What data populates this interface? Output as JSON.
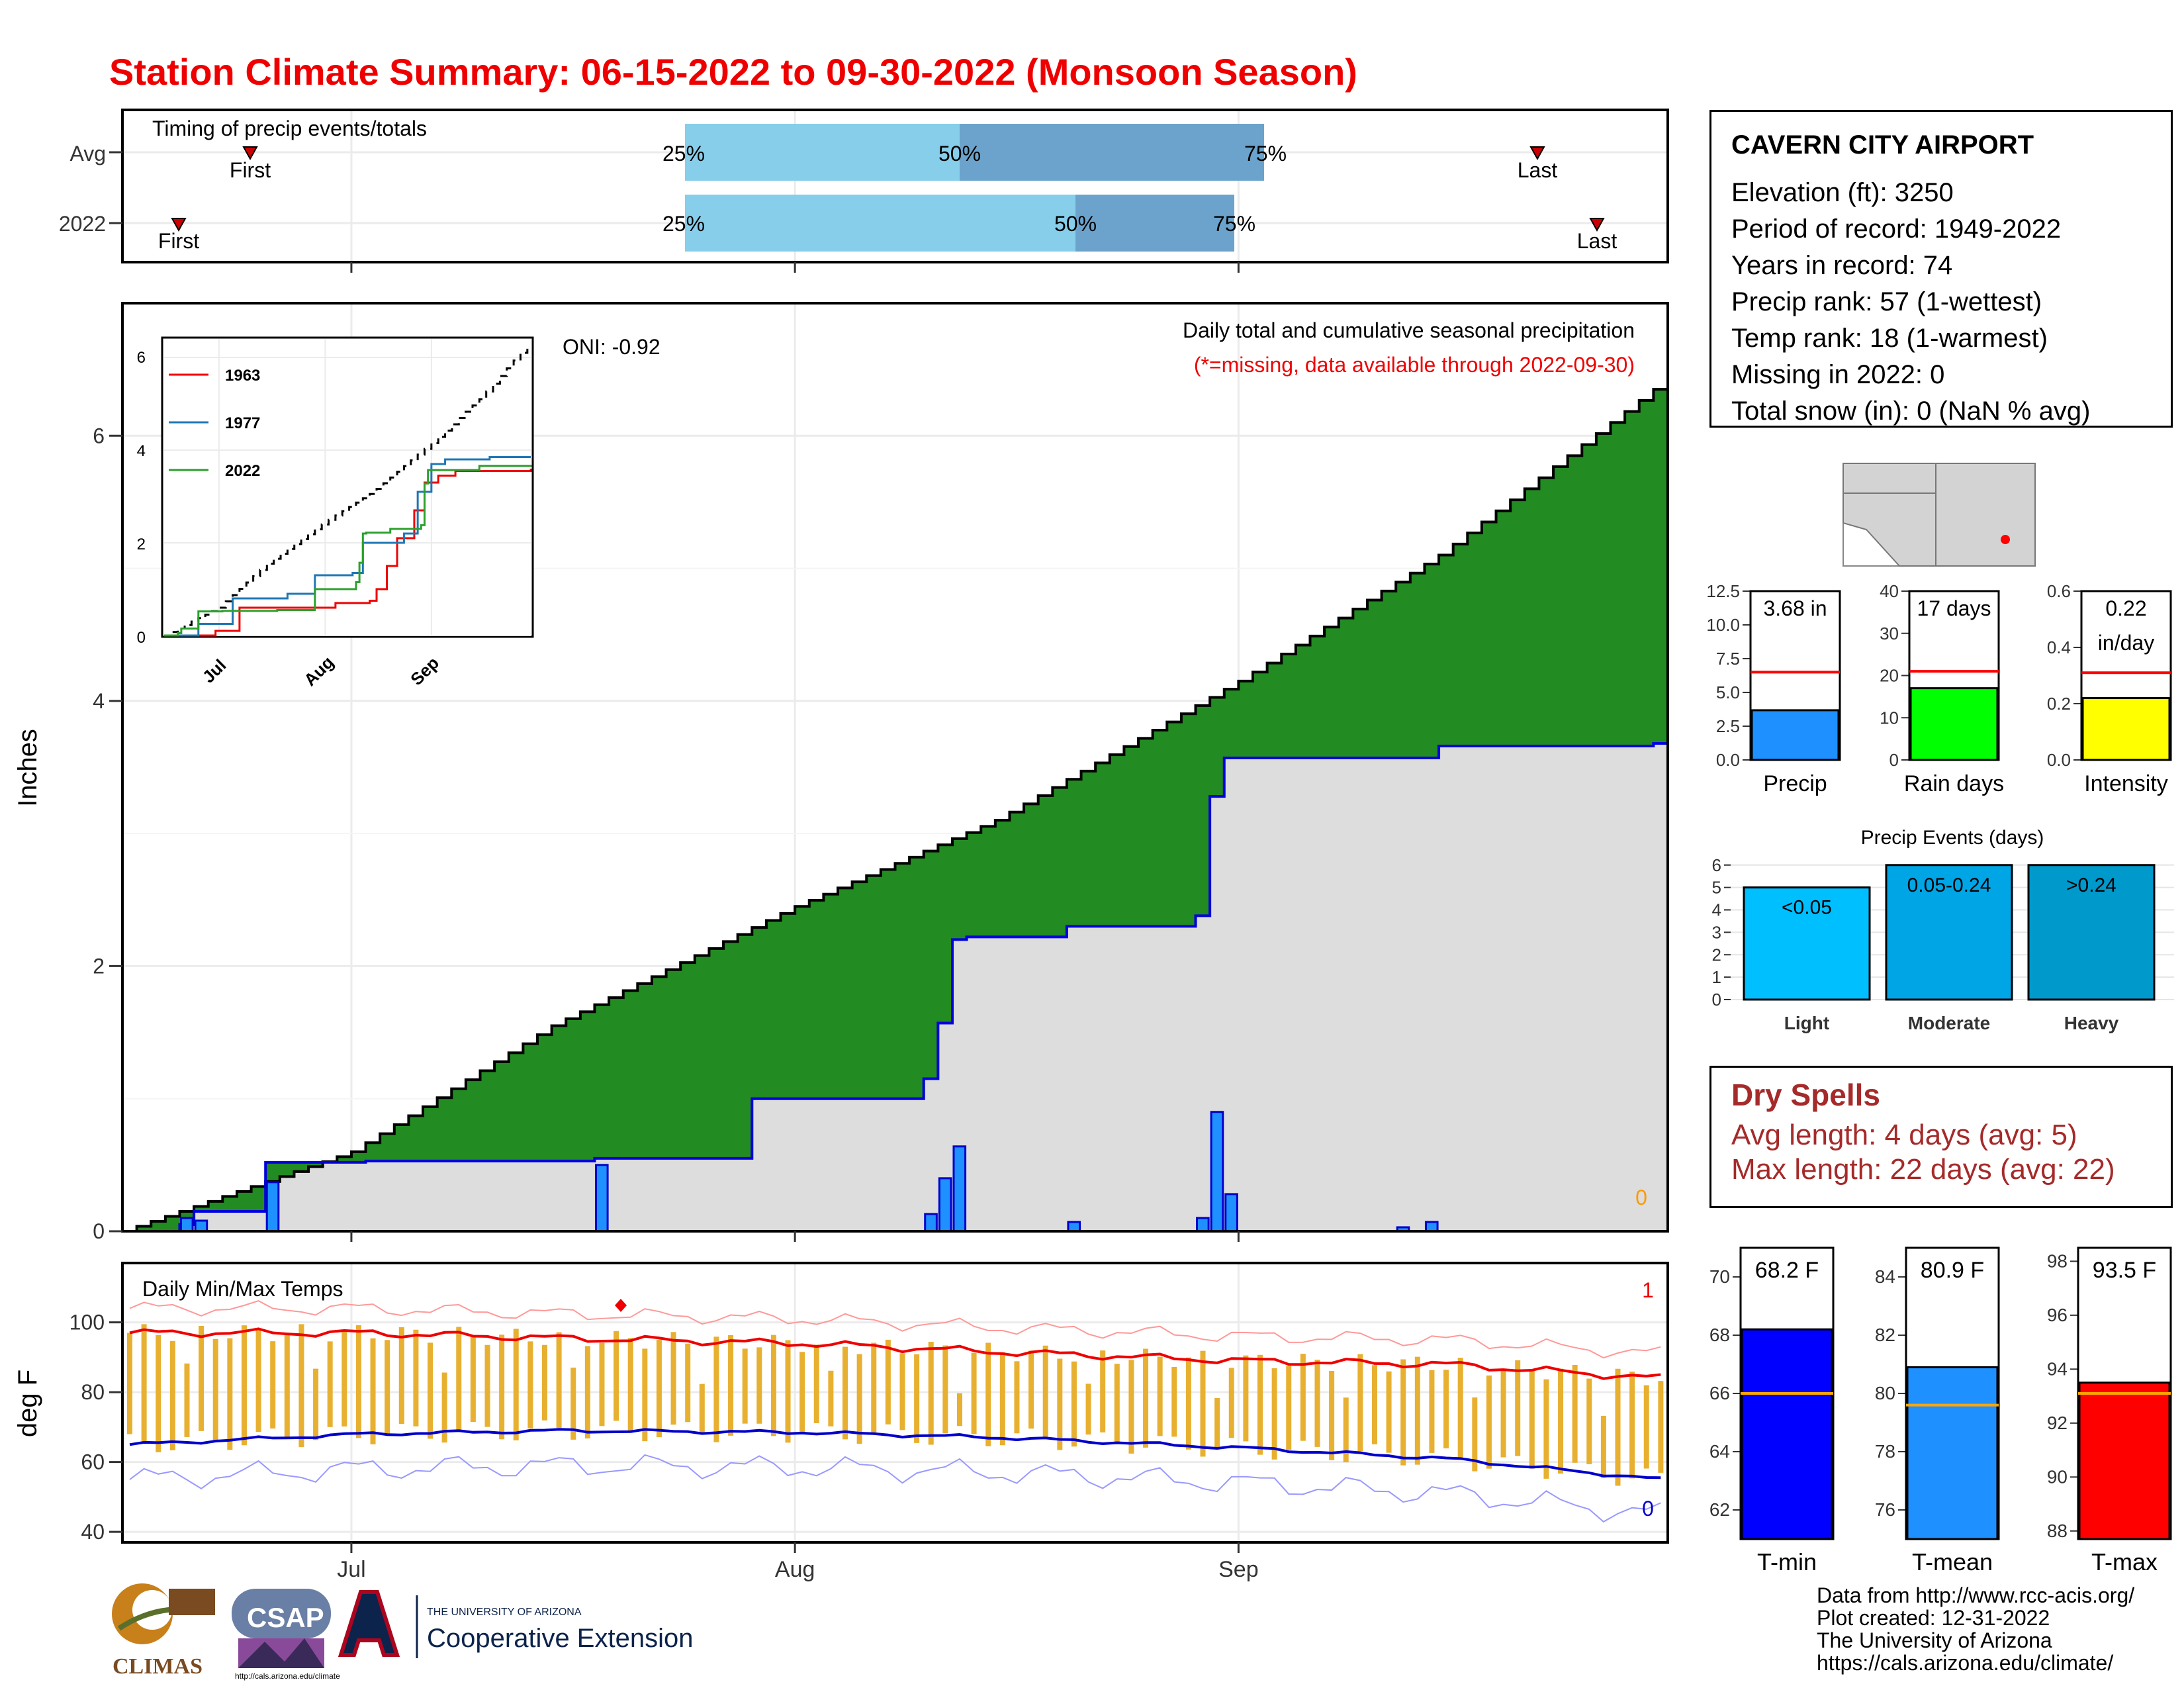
{
  "page_title": "Station Climate Summary: 06-15-2022 to 09-30-2022 (Monsoon Season)",
  "colors": {
    "title": "#ee0000",
    "cumulative_avg_fill": "#8b5a00",
    "cumulative_2022_fill": "#dddddd",
    "cumulative_2022_line": "#0000dd",
    "daily_bar": "#1e90ff",
    "timing_light": "#87ceeb",
    "timing_dark": "#6ba3cc",
    "tmax_avg": "#ee0000",
    "tmin_avg": "#0000cc",
    "temp_range_bar": "#e8b030",
    "precip_bar": "#1e90ff",
    "raindays_bar": "#00ff00",
    "intensity_bar": "#ffff00",
    "light_bar": "#00bfff",
    "moderate_bar": "#00a5e6",
    "heavy_bar": "#0099cc",
    "tmin_bar": "#0000ff",
    "tmean_bar": "#1e90ff",
    "tmax_bar": "#ff0000",
    "dry_spells": "#a52a2a"
  },
  "timing_panel": {
    "label": "Timing of precip events/totals",
    "rows": [
      {
        "name": "Avg",
        "first_label": "First",
        "last_label": "Last",
        "p25": "25%",
        "p50": "50%",
        "p75": "75%"
      },
      {
        "name": "2022",
        "first_label": "First",
        "last_label": "Last",
        "p25": "25%",
        "p50": "50%",
        "p75": "75%"
      }
    ]
  },
  "x_axis_months": [
    "Jul",
    "Aug",
    "Sep"
  ],
  "precip_panel": {
    "ylabel": "Inches",
    "yticks": [
      "0",
      "2",
      "4",
      "6"
    ],
    "oni": "ONI: -0.92",
    "caption": "Daily total and cumulative seasonal precipitation",
    "missing_note": "(*=missing, data available through 2022-09-30)",
    "missing_count": "0",
    "inset": {
      "yticks": [
        "0",
        "2",
        "4",
        "6"
      ],
      "xticks": [
        "Jul",
        "Aug",
        "Sep"
      ],
      "legend": [
        {
          "name": "1963",
          "color": "#ee0000"
        },
        {
          "name": "1977",
          "color": "#1f77b4"
        },
        {
          "name": "2022",
          "color": "#2ca02c"
        }
      ]
    }
  },
  "temp_panel": {
    "label": "Daily Min/Max Temps",
    "ylabel": "deg F",
    "yticks": [
      "40",
      "60",
      "80",
      "100"
    ],
    "high_count": "1",
    "low_count": "0"
  },
  "station": {
    "name": "CAVERN CITY AIRPORT",
    "lines": [
      "Elevation (ft): 3250",
      "Period of record: 1949-2022",
      "Years in record: 74",
      "Precip rank: 57 (1-wettest)",
      "Temp rank: 18 (1-warmest)",
      "Missing in 2022: 0",
      "Total snow (in): 0 (NaN % avg)"
    ]
  },
  "mini_bars": {
    "precip": {
      "value_label": "3.68 in",
      "value": 3.68,
      "avg": 6.5,
      "yticks": [
        "0.0",
        "2.5",
        "5.0",
        "7.5",
        "10.0",
        "12.5"
      ],
      "xlabel": "Precip"
    },
    "raindays": {
      "value_label": "17 days",
      "value": 17,
      "avg": 21,
      "yticks": [
        "0",
        "10",
        "20",
        "30",
        "40"
      ],
      "xlabel": "Rain days"
    },
    "intensity": {
      "value_label_1": "0.22",
      "value_label_2": "in/day",
      "value": 0.22,
      "avg": 0.31,
      "yticks": [
        "0.0",
        "0.2",
        "0.4",
        "0.6"
      ],
      "xlabel": "Intensity"
    }
  },
  "events_panel": {
    "title": "Precip Events (days)",
    "yticks": [
      "0",
      "1",
      "2",
      "3",
      "4",
      "5",
      "6"
    ],
    "bars": [
      {
        "category": "Light",
        "label": "<0.05",
        "value": 5
      },
      {
        "category": "Moderate",
        "label": "0.05-0.24",
        "value": 6
      },
      {
        "category": "Heavy",
        "label": ">0.24",
        "value": 6
      }
    ]
  },
  "dry_spells": {
    "title": "Dry Spells",
    "avg_line": "Avg length: 4 days (avg: 5)",
    "max_line": "Max length: 22 days (avg: 22)"
  },
  "temp_bars": {
    "tmin": {
      "value_label": "68.2 F",
      "value": 68.2,
      "avg": 66.0,
      "yticks": [
        "62",
        "64",
        "66",
        "68",
        "70"
      ],
      "xlabel": "T-min"
    },
    "tmean": {
      "value_label": "80.9 F",
      "value": 80.9,
      "avg": 79.6,
      "yticks": [
        "76",
        "78",
        "80",
        "82",
        "84"
      ],
      "xlabel": "T-mean"
    },
    "tmax": {
      "value_label": "93.5 F",
      "value": 93.5,
      "avg": 93.1,
      "yticks": [
        "88",
        "90",
        "92",
        "94",
        "96",
        "98"
      ],
      "xlabel": "T-max"
    }
  },
  "credits": [
    "Data from http://www.rcc-acis.org/",
    "Plot created: 12-31-2022",
    "The University of Arizona",
    "https://cals.arizona.edu/climate/"
  ],
  "logos": {
    "climas": "CLIMAS",
    "csap": "CSAP",
    "csap_url": "http://cals.arizona.edu/climate",
    "ua_small": "THE UNIVERSITY OF ARIZONA",
    "ua_large": "Cooperative Extension"
  },
  "chart_data": [
    {
      "type": "area",
      "title": "Daily total and cumulative seasonal precipitation",
      "ylabel": "Inches",
      "ylim": [
        0,
        7
      ],
      "x_range": [
        "2022-06-15",
        "2022-09-30"
      ],
      "series": [
        {
          "name": "Average cumulative",
          "x": [
            "2022-06-15",
            "2022-07-01",
            "2022-07-15",
            "2022-08-01",
            "2022-08-15",
            "2022-09-01",
            "2022-09-15",
            "2022-09-30"
          ],
          "values": [
            0,
            0.6,
            1.55,
            2.45,
            3.1,
            4.15,
            5.1,
            6.35
          ]
        },
        {
          "name": "2022 cumulative",
          "x": [
            "2022-06-15",
            "2022-06-19",
            "2022-06-20",
            "2022-06-25",
            "2022-07-02",
            "2022-07-18",
            "2022-07-29",
            "2022-08-10",
            "2022-08-11",
            "2022-08-12",
            "2022-08-13",
            "2022-08-20",
            "2022-08-29",
            "2022-08-30",
            "2022-08-31",
            "2022-09-01",
            "2022-09-15",
            "2022-09-30"
          ],
          "values": [
            0,
            0.05,
            0.15,
            0.52,
            0.53,
            0.55,
            1.0,
            1.15,
            1.57,
            2.2,
            2.22,
            2.3,
            2.38,
            3.28,
            3.57,
            3.57,
            3.66,
            3.68
          ]
        },
        {
          "name": "2022 daily",
          "x": [
            "2022-06-19",
            "2022-06-20",
            "2022-06-25",
            "2022-07-18",
            "2022-08-10",
            "2022-08-11",
            "2022-08-12",
            "2022-08-20",
            "2022-08-29",
            "2022-08-30",
            "2022-08-31",
            "2022-09-12",
            "2022-09-14"
          ],
          "values": [
            0.1,
            0.08,
            0.37,
            0.5,
            0.13,
            0.4,
            0.64,
            0.07,
            0.1,
            0.9,
            0.28,
            0.03,
            0.07
          ]
        }
      ]
    },
    {
      "type": "line",
      "title": "Daily Min/Max Temps",
      "ylabel": "deg F",
      "ylim": [
        37,
        117
      ],
      "x_range": [
        "2022-06-15",
        "2022-09-30"
      ],
      "series": [
        {
          "name": "Avg Tmax",
          "x": [
            "2022-06-15",
            "2022-07-01",
            "2022-07-15",
            "2022-08-01",
            "2022-08-15",
            "2022-09-01",
            "2022-09-15",
            "2022-09-30"
          ],
          "values": [
            97,
            97,
            95.5,
            94,
            91.5,
            89,
            88,
            84
          ]
        },
        {
          "name": "Avg Tmin",
          "x": [
            "2022-06-15",
            "2022-07-01",
            "2022-07-15",
            "2022-08-01",
            "2022-08-15",
            "2022-09-01",
            "2022-09-15",
            "2022-09-30"
          ],
          "values": [
            65,
            68,
            69,
            68.5,
            67,
            64,
            61,
            55
          ]
        }
      ]
    }
  ]
}
